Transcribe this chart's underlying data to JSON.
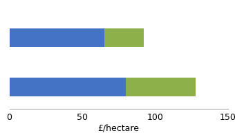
{
  "bars": [
    {
      "blue": 65,
      "green": 27
    },
    {
      "blue": 80,
      "green": 48
    }
  ],
  "bar_positions": [
    1,
    0
  ],
  "blue_color": "#4472C4",
  "green_color": "#8DB04A",
  "xlabel": "£/hectare",
  "xlim": [
    0,
    150
  ],
  "xticks": [
    0,
    50,
    100,
    150
  ],
  "background_color": "#ffffff",
  "bar_height": 0.38,
  "xlabel_fontsize": 9,
  "tick_fontsize": 9,
  "ylim": [
    -0.45,
    1.7
  ]
}
